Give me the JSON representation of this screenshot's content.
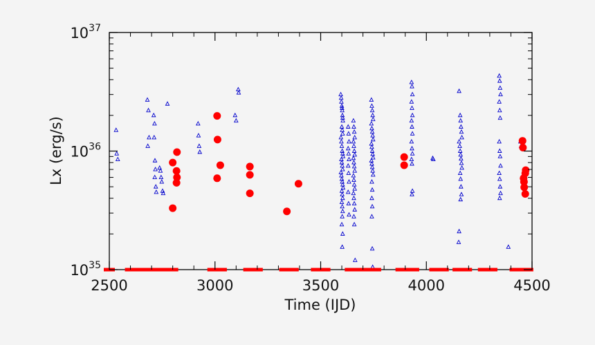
{
  "chart_data": {
    "type": "scatter",
    "title": "",
    "xlabel": "Time (IJD)",
    "ylabel": "Lx (erg/s)",
    "xlim": [
      2500,
      4500
    ],
    "ylim": [
      1e+35,
      1e+37
    ],
    "yscale": "log",
    "grid": false,
    "x_ticks": [
      {
        "value": 2500,
        "label": "2500"
      },
      {
        "value": 3000,
        "label": "3000"
      },
      {
        "value": 3500,
        "label": "3500"
      },
      {
        "value": 4000,
        "label": "4000"
      },
      {
        "value": 4500,
        "label": "4500"
      }
    ],
    "y_ticks": [
      {
        "value": 1e+35,
        "base": "10",
        "exp": "35"
      },
      {
        "value": 1e+36,
        "base": "10",
        "exp": "36"
      },
      {
        "value": 1e+37,
        "base": "10",
        "exp": "37"
      }
    ],
    "series": [
      {
        "marker": "triangle",
        "color": "#0000cc",
        "points": [
          [
            2532,
            1.5e+36
          ],
          [
            2535,
            9.5e+35
          ],
          [
            2540,
            8.5e+35
          ],
          [
            2680,
            2.7e+36
          ],
          [
            2685,
            2.2e+36
          ],
          [
            2682,
            1.1e+36
          ],
          [
            2688,
            1.3e+36
          ],
          [
            2710,
            2e+36
          ],
          [
            2714,
            1.7e+36
          ],
          [
            2712,
            1.3e+36
          ],
          [
            2716,
            8.3e+35
          ],
          [
            2718,
            7e+35
          ],
          [
            2715,
            6e+35
          ],
          [
            2720,
            5e+35
          ],
          [
            2722,
            4.5e+35
          ],
          [
            2738,
            7.2e+35
          ],
          [
            2742,
            6.8e+35
          ],
          [
            2745,
            6e+35
          ],
          [
            2748,
            5.5e+35
          ],
          [
            2752,
            4.6e+35
          ],
          [
            2755,
            4.4e+35
          ],
          [
            2775,
            2.5e+36
          ],
          [
            2920,
            1.7e+36
          ],
          [
            2922,
            1.35e+36
          ],
          [
            2925,
            1.1e+36
          ],
          [
            2928,
            9.8e+35
          ],
          [
            3095,
            2e+36
          ],
          [
            3100,
            1.8e+36
          ],
          [
            3110,
            3.3e+36
          ],
          [
            3112,
            3.1e+36
          ],
          [
            3595,
            3e+36
          ],
          [
            3597,
            2.8e+36
          ],
          [
            3598,
            2.6e+36
          ],
          [
            3600,
            2.4e+36
          ],
          [
            3601,
            2.3e+36
          ],
          [
            3602,
            2.2e+36
          ],
          [
            3603,
            2e+36
          ],
          [
            3604,
            1.9e+36
          ],
          [
            3605,
            1.8e+36
          ],
          [
            3600,
            1.6e+36
          ],
          [
            3602,
            1.5e+36
          ],
          [
            3604,
            1.4e+36
          ],
          [
            3596,
            1.3e+36
          ],
          [
            3598,
            1.2e+36
          ],
          [
            3600,
            1.1e+36
          ],
          [
            3602,
            1e+36
          ],
          [
            3604,
            9.5e+35
          ],
          [
            3606,
            9e+35
          ],
          [
            3598,
            8.5e+35
          ],
          [
            3600,
            8e+35
          ],
          [
            3602,
            7.5e+35
          ],
          [
            3604,
            7e+35
          ],
          [
            3596,
            6.6e+35
          ],
          [
            3598,
            6.2e+35
          ],
          [
            3600,
            5.8e+35
          ],
          [
            3602,
            5.5e+35
          ],
          [
            3604,
            5.2e+35
          ],
          [
            3606,
            4.9e+35
          ],
          [
            3600,
            4.6e+35
          ],
          [
            3602,
            4.3e+35
          ],
          [
            3604,
            4e+35
          ],
          [
            3600,
            3.7e+35
          ],
          [
            3602,
            3.4e+35
          ],
          [
            3604,
            3.1e+35
          ],
          [
            3602,
            2.8e+35
          ],
          [
            3600,
            2.4e+35
          ],
          [
            3604,
            2e+35
          ],
          [
            3602,
            1.55e+35
          ],
          [
            3630,
            1.6e+36
          ],
          [
            3632,
            1.4e+36
          ],
          [
            3634,
            1.2e+36
          ],
          [
            3630,
            1.05e+36
          ],
          [
            3632,
            9.5e+35
          ],
          [
            3634,
            8.5e+35
          ],
          [
            3630,
            7.5e+35
          ],
          [
            3632,
            6.5e+35
          ],
          [
            3634,
            5.5e+35
          ],
          [
            3630,
            4.5e+35
          ],
          [
            3632,
            3.6e+35
          ],
          [
            3634,
            2.9e+35
          ],
          [
            3655,
            1.8e+36
          ],
          [
            3657,
            1.6e+36
          ],
          [
            3659,
            1.45e+36
          ],
          [
            3661,
            1.3e+36
          ],
          [
            3655,
            1.2e+36
          ],
          [
            3657,
            1.1e+36
          ],
          [
            3659,
            1e+36
          ],
          [
            3661,
            9.3e+35
          ],
          [
            3655,
            8.7e+35
          ],
          [
            3657,
            8e+35
          ],
          [
            3659,
            7.4e+35
          ],
          [
            3661,
            6.8e+35
          ],
          [
            3655,
            6.2e+35
          ],
          [
            3657,
            5.7e+35
          ],
          [
            3659,
            5.2e+35
          ],
          [
            3661,
            4.8e+35
          ],
          [
            3655,
            4.4e+35
          ],
          [
            3657,
            4e+35
          ],
          [
            3659,
            3.6e+35
          ],
          [
            3661,
            3.2e+35
          ],
          [
            3657,
            2.8e+35
          ],
          [
            3659,
            2.4e+35
          ],
          [
            3663,
            1.2e+35
          ],
          [
            3740,
            2.7e+36
          ],
          [
            3742,
            2.4e+36
          ],
          [
            3744,
            2.2e+36
          ],
          [
            3746,
            2e+36
          ],
          [
            3748,
            1.85e+36
          ],
          [
            3740,
            1.7e+36
          ],
          [
            3742,
            1.55e+36
          ],
          [
            3744,
            1.45e+36
          ],
          [
            3746,
            1.35e+36
          ],
          [
            3748,
            1.25e+36
          ],
          [
            3740,
            1.15e+36
          ],
          [
            3742,
            1.08e+36
          ],
          [
            3744,
            1e+36
          ],
          [
            3746,
            9.4e+35
          ],
          [
            3748,
            8.8e+35
          ],
          [
            3740,
            8.3e+35
          ],
          [
            3742,
            7.8e+35
          ],
          [
            3744,
            7.3e+35
          ],
          [
            3746,
            6.8e+35
          ],
          [
            3748,
            6.3e+35
          ],
          [
            3742,
            5.5e+35
          ],
          [
            3744,
            4.7e+35
          ],
          [
            3742,
            4e+35
          ],
          [
            3744,
            3.4e+35
          ],
          [
            3742,
            2.8e+35
          ],
          [
            3744,
            1.5e+35
          ],
          [
            3746,
            1.05e+35
          ],
          [
            3930,
            3.8e+36
          ],
          [
            3932,
            3.5e+36
          ],
          [
            3934,
            3e+36
          ],
          [
            3930,
            2.6e+36
          ],
          [
            3932,
            2.3e+36
          ],
          [
            3934,
            2e+36
          ],
          [
            3930,
            1.8e+36
          ],
          [
            3932,
            1.6e+36
          ],
          [
            3934,
            1.4e+36
          ],
          [
            3930,
            1.2e+36
          ],
          [
            3932,
            1.05e+36
          ],
          [
            3934,
            9.5e+35
          ],
          [
            3930,
            8.5e+35
          ],
          [
            3932,
            7.8e+35
          ],
          [
            3934,
            4.6e+35
          ],
          [
            3932,
            4.3e+35
          ],
          [
            4030,
            8.7e+35
          ],
          [
            4033,
            8.5e+35
          ],
          [
            4155,
            3.2e+36
          ],
          [
            4160,
            2e+36
          ],
          [
            4162,
            1.8e+36
          ],
          [
            4164,
            1.6e+36
          ],
          [
            4166,
            1.45e+36
          ],
          [
            4168,
            1.3e+36
          ],
          [
            4155,
            1.2e+36
          ],
          [
            4158,
            1.1e+36
          ],
          [
            4160,
            1e+36
          ],
          [
            4162,
            9.3e+35
          ],
          [
            4164,
            8.6e+35
          ],
          [
            4166,
            7.9e+35
          ],
          [
            4168,
            7.2e+35
          ],
          [
            4160,
            6.5e+35
          ],
          [
            4162,
            5.8e+35
          ],
          [
            4164,
            5e+35
          ],
          [
            4166,
            4.3e+35
          ],
          [
            4162,
            3.9e+35
          ],
          [
            4155,
            2.1e+35
          ],
          [
            4153,
            1.7e+35
          ],
          [
            4345,
            4.3e+36
          ],
          [
            4347,
            3.9e+36
          ],
          [
            4349,
            3.4e+36
          ],
          [
            4351,
            3e+36
          ],
          [
            4345,
            2.6e+36
          ],
          [
            4347,
            2.2e+36
          ],
          [
            4349,
            1.9e+36
          ],
          [
            4345,
            1.2e+36
          ],
          [
            4347,
            1e+36
          ],
          [
            4349,
            9e+35
          ],
          [
            4351,
            7.5e+35
          ],
          [
            4345,
            6.5e+35
          ],
          [
            4347,
            5.8e+35
          ],
          [
            4349,
            5e+35
          ],
          [
            4351,
            4.4e+35
          ],
          [
            4347,
            4e+35
          ],
          [
            4388,
            1.55e+35
          ],
          [
            4445,
            1.2e+36
          ],
          [
            4448,
            1.1e+36
          ]
        ]
      },
      {
        "marker": "circle",
        "color": "#ff0000",
        "points": [
          [
            2800,
            8e+35
          ],
          [
            2820,
            9.8e+35
          ],
          [
            2818,
            6.8e+35
          ],
          [
            2820,
            6e+35
          ],
          [
            2818,
            5.4e+35
          ],
          [
            2800,
            3.3e+35
          ],
          [
            3010,
            1.98e+36
          ],
          [
            3012,
            1.25e+36
          ],
          [
            3025,
            7.6e+35
          ],
          [
            3010,
            5.9e+35
          ],
          [
            3165,
            7.4e+35
          ],
          [
            3165,
            6.3e+35
          ],
          [
            3165,
            4.4e+35
          ],
          [
            3340,
            3.1e+35
          ],
          [
            3395,
            5.3e+35
          ],
          [
            3895,
            8.9e+35
          ],
          [
            3895,
            7.6e+35
          ],
          [
            4455,
            1.22e+36
          ],
          [
            4457,
            1.07e+36
          ],
          [
            4470,
            6.9e+35
          ],
          [
            4468,
            6.5e+35
          ],
          [
            4460,
            5.9e+35
          ],
          [
            4462,
            5.5e+35
          ],
          [
            4463,
            4.95e+35
          ],
          [
            4468,
            4.35e+35
          ]
        ]
      },
      {
        "marker": "bar-at-floor",
        "color": "#ff0000",
        "points": [
          [
            2500,
            1e+35
          ],
          [
            2600,
            1e+35
          ],
          [
            2620,
            1e+35
          ],
          [
            2640,
            1e+35
          ],
          [
            2660,
            1e+35
          ],
          [
            2680,
            1e+35
          ],
          [
            2730,
            1e+35
          ],
          [
            2750,
            1e+35
          ],
          [
            2770,
            1e+35
          ],
          [
            2800,
            1e+35
          ],
          [
            2990,
            1e+35
          ],
          [
            3010,
            1e+35
          ],
          [
            3030,
            1e+35
          ],
          [
            3160,
            1e+35
          ],
          [
            3180,
            1e+35
          ],
          [
            3200,
            1e+35
          ],
          [
            3330,
            1e+35
          ],
          [
            3350,
            1e+35
          ],
          [
            3370,
            1e+35
          ],
          [
            3480,
            1e+35
          ],
          [
            3500,
            1e+35
          ],
          [
            3520,
            1e+35
          ],
          [
            3640,
            1e+35
          ],
          [
            3660,
            1e+35
          ],
          [
            3700,
            1e+35
          ],
          [
            3720,
            1e+35
          ],
          [
            3740,
            1e+35
          ],
          [
            3760,
            1e+35
          ],
          [
            3880,
            1e+35
          ],
          [
            3900,
            1e+35
          ],
          [
            3920,
            1e+35
          ],
          [
            3940,
            1e+35
          ],
          [
            4040,
            1e+35
          ],
          [
            4060,
            1e+35
          ],
          [
            4080,
            1e+35
          ],
          [
            4150,
            1e+35
          ],
          [
            4170,
            1e+35
          ],
          [
            4190,
            1e+35
          ],
          [
            4270,
            1e+35
          ],
          [
            4290,
            1e+35
          ],
          [
            4310,
            1e+35
          ],
          [
            4420,
            1e+35
          ],
          [
            4440,
            1e+35
          ],
          [
            4460,
            1e+35
          ],
          [
            4480,
            1e+35
          ]
        ]
      }
    ]
  }
}
